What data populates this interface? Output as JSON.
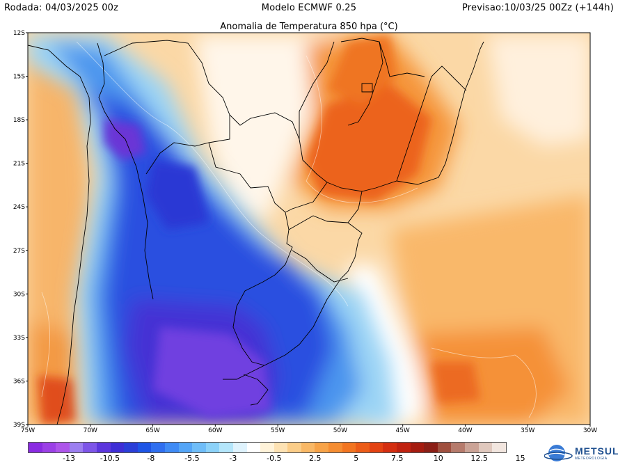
{
  "header": {
    "run": "Rodada: 04/03/2025 00z",
    "model": "Modelo ECMWF 0.25",
    "forecast": "Previsao:10/03/25 00Zz (+144h)"
  },
  "map": {
    "title": "Anomalia de Temperatura 850 hpa (°C)",
    "lat_labels": [
      "12S",
      "15S",
      "18S",
      "21S",
      "24S",
      "27S",
      "30S",
      "33S",
      "36S",
      "39S"
    ],
    "lon_labels": [
      "75W",
      "70W",
      "65W",
      "60W",
      "55W",
      "50W",
      "45W",
      "40W",
      "35W",
      "30W"
    ],
    "extent": {
      "lon": [
        -75,
        -30
      ],
      "lat": [
        -39,
        -12
      ]
    }
  },
  "legend": {
    "colors": [
      "#8a2be2",
      "#9b40e6",
      "#ad55ea",
      "#9c7ff0",
      "#7d55e8",
      "#5c36dd",
      "#3e2ed6",
      "#2a3ed8",
      "#1e55e6",
      "#2f6ff0",
      "#3f8bf5",
      "#54a5f7",
      "#6fbdf8",
      "#8cd2f9",
      "#b4e6fb",
      "#dff3fd",
      "#ffffff",
      "#fff3d9",
      "#fde2b3",
      "#fbcd88",
      "#f9b866",
      "#f7a348",
      "#f58d32",
      "#f27521",
      "#ec5c18",
      "#e34212",
      "#d42e10",
      "#c02210",
      "#a51c10",
      "#8b1f16",
      "#a0503f",
      "#b67b6c",
      "#cba396",
      "#e0c8bd",
      "#f2e6df"
    ],
    "labels": [
      "-13",
      "-10.5",
      "-8",
      "-5.5",
      "-3",
      "-0.5",
      "2.5",
      "5",
      "7.5",
      "10",
      "12.5",
      "15"
    ]
  },
  "logo": {
    "name": "METSUL",
    "tagline": "METEOROLOGIA"
  }
}
